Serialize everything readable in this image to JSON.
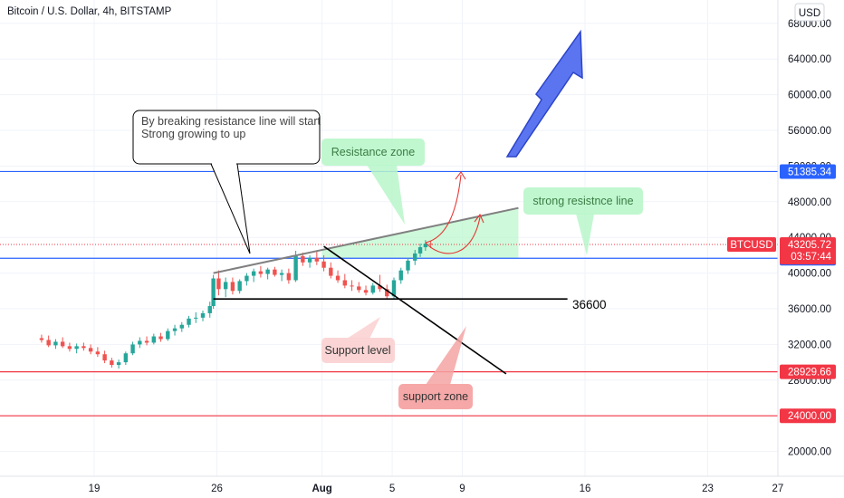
{
  "header": {
    "title": "Bitcoin / U.S. Dollar, 4h, BITSTAMP",
    "currency_button": "USD"
  },
  "chart_data": {
    "type": "candlestick",
    "symbol": "BTCUSD",
    "y_tick_labels": [
      "20000.00",
      "24000.00",
      "28000.00",
      "32000.00",
      "36000.00",
      "40000.00",
      "44000.00",
      "48000.00",
      "52000.00",
      "56000.00",
      "60000.00",
      "64000.00",
      "68000.00"
    ],
    "y_ticks": [
      20000,
      24000,
      28000,
      32000,
      36000,
      40000,
      44000,
      48000,
      52000,
      56000,
      60000,
      64000,
      68000
    ],
    "ylim": [
      18000,
      70000
    ],
    "x_tick_labels": [
      "19",
      "26",
      "Aug",
      "5",
      "9",
      "16",
      "23",
      "27"
    ],
    "x_ticks_day": [
      19,
      26,
      32,
      36,
      40,
      47,
      54,
      58
    ],
    "xlim_day": [
      15.8,
      59
    ],
    "grid": true,
    "candles": [
      {
        "day": 16.0,
        "o": 32700,
        "h": 33100,
        "l": 32200,
        "c": 32500
      },
      {
        "day": 16.4,
        "o": 32500,
        "h": 33000,
        "l": 31700,
        "c": 31900
      },
      {
        "day": 16.8,
        "o": 31900,
        "h": 32600,
        "l": 31500,
        "c": 32300
      },
      {
        "day": 17.2,
        "o": 32300,
        "h": 32800,
        "l": 31600,
        "c": 31800
      },
      {
        "day": 17.6,
        "o": 31800,
        "h": 32200,
        "l": 31200,
        "c": 31500
      },
      {
        "day": 18.0,
        "o": 31500,
        "h": 32100,
        "l": 31000,
        "c": 31800
      },
      {
        "day": 18.4,
        "o": 31800,
        "h": 32200,
        "l": 31300,
        "c": 31600
      },
      {
        "day": 18.8,
        "o": 31600,
        "h": 32000,
        "l": 30900,
        "c": 31200
      },
      {
        "day": 19.2,
        "o": 31200,
        "h": 31700,
        "l": 30600,
        "c": 30900
      },
      {
        "day": 19.6,
        "o": 30900,
        "h": 31300,
        "l": 29900,
        "c": 30200
      },
      {
        "day": 20.0,
        "o": 30200,
        "h": 30500,
        "l": 29400,
        "c": 29700
      },
      {
        "day": 20.4,
        "o": 29700,
        "h": 30300,
        "l": 29300,
        "c": 30000
      },
      {
        "day": 20.8,
        "o": 30000,
        "h": 31200,
        "l": 29700,
        "c": 31000
      },
      {
        "day": 21.2,
        "o": 31000,
        "h": 32300,
        "l": 30800,
        "c": 32000
      },
      {
        "day": 21.6,
        "o": 32000,
        "h": 32800,
        "l": 31600,
        "c": 32400
      },
      {
        "day": 22.0,
        "o": 32400,
        "h": 32900,
        "l": 31900,
        "c": 32200
      },
      {
        "day": 22.4,
        "o": 32200,
        "h": 33200,
        "l": 32000,
        "c": 32900
      },
      {
        "day": 22.8,
        "o": 32900,
        "h": 33300,
        "l": 32300,
        "c": 32600
      },
      {
        "day": 23.2,
        "o": 32600,
        "h": 33800,
        "l": 32400,
        "c": 33500
      },
      {
        "day": 23.6,
        "o": 33500,
        "h": 34200,
        "l": 33000,
        "c": 33800
      },
      {
        "day": 24.0,
        "o": 33800,
        "h": 34500,
        "l": 33400,
        "c": 34200
      },
      {
        "day": 24.4,
        "o": 34200,
        "h": 35200,
        "l": 33900,
        "c": 34900
      },
      {
        "day": 24.8,
        "o": 34900,
        "h": 35600,
        "l": 34400,
        "c": 35000
      },
      {
        "day": 25.2,
        "o": 35000,
        "h": 35800,
        "l": 34600,
        "c": 35500
      },
      {
        "day": 25.6,
        "o": 35500,
        "h": 36800,
        "l": 35000,
        "c": 36300
      },
      {
        "day": 25.8,
        "o": 36300,
        "h": 39800,
        "l": 36000,
        "c": 39400
      },
      {
        "day": 26.1,
        "o": 39400,
        "h": 40300,
        "l": 37500,
        "c": 38200
      },
      {
        "day": 26.5,
        "o": 38200,
        "h": 39500,
        "l": 37300,
        "c": 39000
      },
      {
        "day": 26.9,
        "o": 39000,
        "h": 39500,
        "l": 37600,
        "c": 38000
      },
      {
        "day": 27.3,
        "o": 38000,
        "h": 39300,
        "l": 37700,
        "c": 39100
      },
      {
        "day": 27.7,
        "o": 39100,
        "h": 40000,
        "l": 38600,
        "c": 39700
      },
      {
        "day": 28.1,
        "o": 39700,
        "h": 40500,
        "l": 39000,
        "c": 40200
      },
      {
        "day": 28.5,
        "o": 40200,
        "h": 40800,
        "l": 39500,
        "c": 39900
      },
      {
        "day": 28.9,
        "o": 39900,
        "h": 40600,
        "l": 39300,
        "c": 40400
      },
      {
        "day": 29.3,
        "o": 40400,
        "h": 40700,
        "l": 39600,
        "c": 39800
      },
      {
        "day": 29.7,
        "o": 39800,
        "h": 40400,
        "l": 39100,
        "c": 40000
      },
      {
        "day": 30.1,
        "o": 40000,
        "h": 40500,
        "l": 38800,
        "c": 39200
      },
      {
        "day": 30.5,
        "o": 39200,
        "h": 42500,
        "l": 39000,
        "c": 41900
      },
      {
        "day": 30.9,
        "o": 41900,
        "h": 42300,
        "l": 40800,
        "c": 41200
      },
      {
        "day": 31.3,
        "o": 41200,
        "h": 42000,
        "l": 40600,
        "c": 41700
      },
      {
        "day": 31.7,
        "o": 41700,
        "h": 42400,
        "l": 40900,
        "c": 41300
      },
      {
        "day": 32.1,
        "o": 41300,
        "h": 42000,
        "l": 40200,
        "c": 40600
      },
      {
        "day": 32.5,
        "o": 40600,
        "h": 41200,
        "l": 39400,
        "c": 39700
      },
      {
        "day": 32.9,
        "o": 39700,
        "h": 40300,
        "l": 38900,
        "c": 39200
      },
      {
        "day": 33.3,
        "o": 39200,
        "h": 39900,
        "l": 38300,
        "c": 38600
      },
      {
        "day": 33.7,
        "o": 38600,
        "h": 39200,
        "l": 38000,
        "c": 38500
      },
      {
        "day": 34.1,
        "o": 38500,
        "h": 39000,
        "l": 37800,
        "c": 38100
      },
      {
        "day": 34.5,
        "o": 38100,
        "h": 38600,
        "l": 37500,
        "c": 37800
      },
      {
        "day": 34.9,
        "o": 37800,
        "h": 38900,
        "l": 37600,
        "c": 38600
      },
      {
        "day": 35.3,
        "o": 38600,
        "h": 39800,
        "l": 37900,
        "c": 38200
      },
      {
        "day": 35.7,
        "o": 38200,
        "h": 38700,
        "l": 37100,
        "c": 37400
      },
      {
        "day": 36.1,
        "o": 37400,
        "h": 39500,
        "l": 37000,
        "c": 39200
      },
      {
        "day": 36.5,
        "o": 39200,
        "h": 40600,
        "l": 38800,
        "c": 40300
      },
      {
        "day": 36.9,
        "o": 40300,
        "h": 41700,
        "l": 39900,
        "c": 41400
      },
      {
        "day": 37.3,
        "o": 41400,
        "h": 42600,
        "l": 40900,
        "c": 42200
      },
      {
        "day": 37.6,
        "o": 42200,
        "h": 43300,
        "l": 41800,
        "c": 42900
      },
      {
        "day": 37.9,
        "o": 42900,
        "h": 43700,
        "l": 42500,
        "c": 43300
      },
      {
        "day": 38.2,
        "o": 43300,
        "h": 43600,
        "l": 42800,
        "c": 43205
      }
    ],
    "horizontal_lines": [
      {
        "price": 51385.34,
        "label": "51385.34",
        "color": "#2962ff"
      },
      {
        "price": 41660.49,
        "label": "41660.49",
        "color": "#2962ff"
      },
      {
        "price": 28929.66,
        "label": "28929.66",
        "color": "#f23645"
      },
      {
        "price": 24000.0,
        "label": "24000.00",
        "color": "#f23645"
      }
    ],
    "current_price": {
      "symbol": "BTCUSD",
      "price": 43205.72,
      "label": "43205.72",
      "countdown": "03:57:44",
      "color": "#f23645"
    },
    "trend_lines": [
      {
        "name": "resistance-line",
        "from": [
          25.8,
          40000
        ],
        "to": [
          43.2,
          47300
        ],
        "color": "#808080"
      },
      {
        "name": "support-line",
        "from": [
          25.8,
          37100
        ],
        "to": [
          46.0,
          37100
        ],
        "color": "#000000"
      },
      {
        "name": "downtrend-line",
        "from": [
          32.1,
          43000
        ],
        "to": [
          42.5,
          28700
        ],
        "color": "#000000"
      }
    ],
    "resistance_zone": {
      "from_day": 32.0,
      "to_day": 43.2,
      "low": 41660.49,
      "color": "#b9f6ca"
    },
    "annotations": {
      "breakout_note": {
        "text_lines": [
          "By breaking resistance line will start",
          "Strong growing to up"
        ]
      },
      "resistance_zone_label": "Resistance zone",
      "strong_line_label": "strong resistnce line",
      "support_level_label": "Support level",
      "support_zone_label": "support zone",
      "level_value_label": "36600"
    }
  }
}
